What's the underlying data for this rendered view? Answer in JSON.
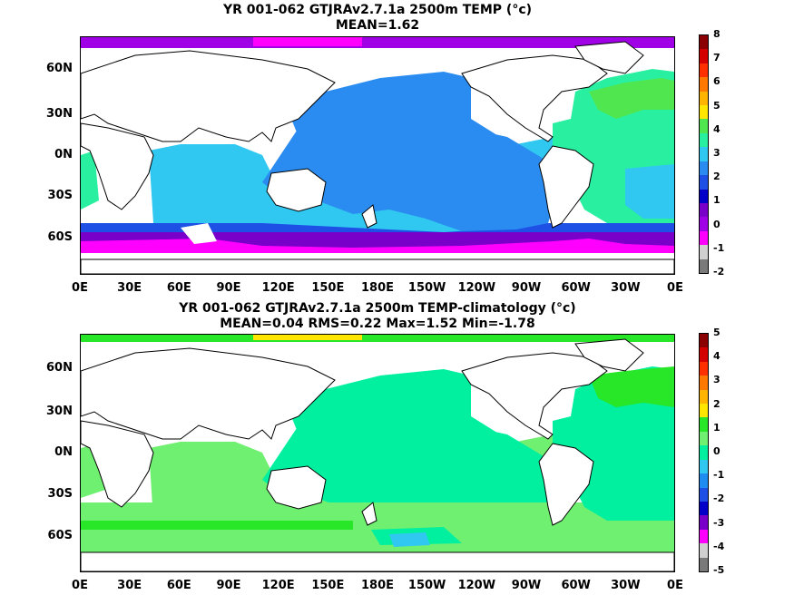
{
  "panels": [
    {
      "title_line1": "YR 001-062 GTJRAv2.7.1a 2500m TEMP",
      "title_unit": "(°c)",
      "title_line2": "MEAN=1.62",
      "colorbar": {
        "levels": [
          "8",
          "7",
          "6",
          "5",
          "4",
          "3",
          "2",
          "1",
          "0",
          "-1",
          "-2"
        ],
        "colors": [
          "#8b0000",
          "#d40000",
          "#ff3000",
          "#ff7800",
          "#ffb400",
          "#ffe600",
          "#50e650",
          "#28f0a0",
          "#30c8f0",
          "#2a8cf0",
          "#1e50e6",
          "#0000c8",
          "#7800c8",
          "#a000e6",
          "#ff00ff",
          "#d0d0d0",
          "#7a7a7a"
        ]
      }
    },
    {
      "title_line1": "YR 001-062 GTJRAv2.7.1a 2500m TEMP-climatology",
      "title_unit": "(°c)",
      "title_line2": "MEAN=0.04   RMS=0.22   Max=1.52   Min=-1.78",
      "colorbar": {
        "levels": [
          "5",
          "4",
          "3",
          "2",
          "1",
          "0",
          "-1",
          "-2",
          "-3",
          "-4",
          "-5"
        ],
        "colors": [
          "#8b0000",
          "#d40000",
          "#ff3000",
          "#ff7800",
          "#ffb400",
          "#ffe600",
          "#28e628",
          "#70f070",
          "#00f0a0",
          "#30c8f0",
          "#1e8cf0",
          "#1e50e6",
          "#0000c8",
          "#7800c8",
          "#ff00ff",
          "#d0d0d0",
          "#7a7a7a"
        ]
      }
    }
  ],
  "lat_labels": [
    "60N",
    "30N",
    "0N",
    "30S",
    "60S"
  ],
  "lon_labels": [
    "0E",
    "30E",
    "60E",
    "90E",
    "120E",
    "150E",
    "180E",
    "150W",
    "120W",
    "90W",
    "60W",
    "30W",
    "0E"
  ]
}
